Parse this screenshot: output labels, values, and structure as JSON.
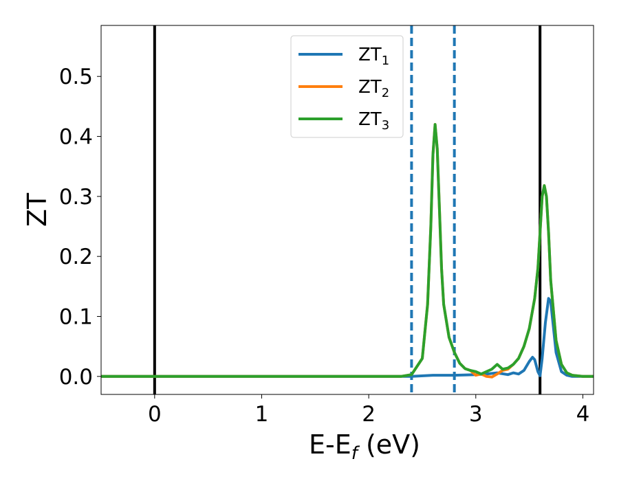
{
  "chart_data": {
    "type": "line",
    "xlabel": "E-E",
    "xlabel_sub": "f",
    "xlabel_unit": " (eV)",
    "ylabel": "ZT",
    "xlim": [
      -0.5,
      4.1
    ],
    "ylim": [
      -0.03,
      0.585
    ],
    "xticks": [
      0,
      1,
      2,
      3,
      4
    ],
    "xtick_labels": [
      "0",
      "1",
      "2",
      "3",
      "4"
    ],
    "yticks": [
      0.0,
      0.1,
      0.2,
      0.3,
      0.4,
      0.5
    ],
    "ytick_labels": [
      "0.0",
      "0.1",
      "0.2",
      "0.3",
      "0.4",
      "0.5"
    ],
    "grid": false,
    "legend_position": "top-center",
    "vlines_solid": [
      0.0,
      3.6
    ],
    "vlines_dashed": [
      2.4,
      2.8
    ],
    "vline_solid_color": "#000000",
    "vline_dashed_color": "#1f77b4",
    "series": [
      {
        "name": "ZT",
        "name_sub": "1",
        "color": "#1f77b4",
        "x": [
          -0.5,
          2.4,
          2.6,
          2.8,
          3.0,
          3.1,
          3.2,
          3.3,
          3.35,
          3.4,
          3.45,
          3.5,
          3.53,
          3.55,
          3.58,
          3.6,
          3.62,
          3.65,
          3.68,
          3.7,
          3.72,
          3.75,
          3.8,
          3.85,
          3.9,
          4.1
        ],
        "y": [
          0.0,
          0.0,
          0.002,
          0.002,
          0.003,
          0.004,
          0.006,
          0.003,
          0.006,
          0.004,
          0.01,
          0.025,
          0.032,
          0.028,
          0.008,
          0.001,
          0.03,
          0.09,
          0.13,
          0.125,
          0.09,
          0.04,
          0.008,
          0.002,
          0.0,
          0.0
        ]
      },
      {
        "name": "ZT",
        "name_sub": "2",
        "color": "#ff7f0e",
        "x": [
          -0.5,
          2.3,
          2.4,
          2.5,
          2.55,
          2.58,
          2.6,
          2.62,
          2.64,
          2.66,
          2.68,
          2.7,
          2.75,
          2.8,
          2.85,
          2.9,
          2.95,
          3.0,
          3.05,
          3.1,
          3.15,
          3.2,
          3.25,
          3.3,
          3.35,
          3.4,
          3.45,
          3.5,
          3.55,
          3.58,
          3.6,
          3.62,
          3.64,
          3.66,
          3.68,
          3.7,
          3.75,
          3.8,
          3.85,
          3.9,
          4.0,
          4.1
        ],
        "y": [
          0.0,
          0.0,
          0.003,
          0.03,
          0.12,
          0.25,
          0.37,
          0.42,
          0.38,
          0.28,
          0.18,
          0.12,
          0.065,
          0.04,
          0.022,
          0.013,
          0.01,
          0.002,
          0.004,
          0.0,
          -0.001,
          0.004,
          0.01,
          0.012,
          0.02,
          0.03,
          0.05,
          0.08,
          0.13,
          0.18,
          0.24,
          0.3,
          0.318,
          0.3,
          0.24,
          0.16,
          0.06,
          0.02,
          0.006,
          0.002,
          0.0,
          0.0
        ]
      },
      {
        "name": "ZT",
        "name_sub": "3",
        "color": "#2ca02c",
        "x": [
          -0.5,
          2.3,
          2.4,
          2.5,
          2.55,
          2.58,
          2.6,
          2.62,
          2.64,
          2.66,
          2.68,
          2.7,
          2.75,
          2.8,
          2.85,
          2.9,
          2.95,
          3.0,
          3.05,
          3.1,
          3.15,
          3.2,
          3.25,
          3.3,
          3.35,
          3.4,
          3.45,
          3.5,
          3.55,
          3.58,
          3.6,
          3.62,
          3.64,
          3.66,
          3.68,
          3.7,
          3.75,
          3.8,
          3.85,
          3.9,
          4.0,
          4.1
        ],
        "y": [
          0.0,
          0.0,
          0.003,
          0.03,
          0.12,
          0.25,
          0.37,
          0.42,
          0.38,
          0.28,
          0.18,
          0.12,
          0.065,
          0.04,
          0.022,
          0.013,
          0.01,
          0.008,
          0.004,
          0.008,
          0.012,
          0.02,
          0.012,
          0.014,
          0.02,
          0.03,
          0.05,
          0.08,
          0.13,
          0.18,
          0.24,
          0.3,
          0.318,
          0.3,
          0.24,
          0.16,
          0.06,
          0.02,
          0.006,
          0.002,
          0.0,
          0.0
        ]
      }
    ]
  }
}
